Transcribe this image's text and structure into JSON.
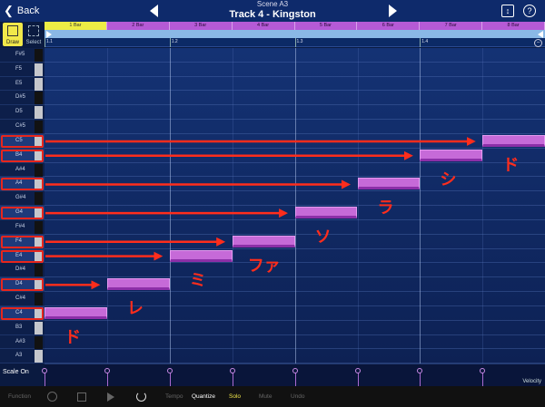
{
  "header": {
    "back_label": "Back",
    "scene_label": "Scene  A3",
    "track_title": "Track 4 - Kingston",
    "help_glyph": "?",
    "expand_glyph": "↕"
  },
  "tools": {
    "draw_label": "Draw",
    "select_label": "Select"
  },
  "bars": [
    "1 Bar",
    "2 Bar",
    "3 Bar",
    "4 Bar",
    "5 Bar",
    "6 Bar",
    "7 Bar",
    "8 Bar"
  ],
  "beats": [
    "1.1",
    "1.2",
    "1.3",
    "1.4"
  ],
  "keyboard": {
    "keys": [
      {
        "label": "F#5",
        "black": true
      },
      {
        "label": "F5",
        "black": false
      },
      {
        "label": "E5",
        "black": false
      },
      {
        "label": "D#5",
        "black": true
      },
      {
        "label": "D5",
        "black": false
      },
      {
        "label": "C#5",
        "black": true
      },
      {
        "label": "C5",
        "black": false
      },
      {
        "label": "B4",
        "black": false
      },
      {
        "label": "A#4",
        "black": true
      },
      {
        "label": "A4",
        "black": false
      },
      {
        "label": "G#4",
        "black": true
      },
      {
        "label": "G4",
        "black": false
      },
      {
        "label": "F#4",
        "black": true
      },
      {
        "label": "F4",
        "black": false
      },
      {
        "label": "E4",
        "black": false
      },
      {
        "label": "D#4",
        "black": true
      },
      {
        "label": "D4",
        "black": false
      },
      {
        "label": "C#4",
        "black": true
      },
      {
        "label": "C4",
        "black": false
      },
      {
        "label": "B3",
        "black": false
      },
      {
        "label": "A#3",
        "black": true
      },
      {
        "label": "A3",
        "black": false
      }
    ]
  },
  "notes": [
    {
      "pitch": "C4",
      "step": 0
    },
    {
      "pitch": "D4",
      "step": 1
    },
    {
      "pitch": "E4",
      "step": 2
    },
    {
      "pitch": "F4",
      "step": 3
    },
    {
      "pitch": "G4",
      "step": 4
    },
    {
      "pitch": "A4",
      "step": 5
    },
    {
      "pitch": "B4",
      "step": 6
    },
    {
      "pitch": "C5",
      "step": 7
    }
  ],
  "annotations": {
    "color": "#ff2d1c",
    "labels": [
      "ド",
      "レ",
      "ミ",
      "ファ",
      "ソ",
      "ラ",
      "シ",
      "ド"
    ]
  },
  "scale_label": "Scale On",
  "velocity_label": "Velocity",
  "footer": {
    "function": "Function",
    "tempo": "Tempo",
    "quantize": "Quantize",
    "solo": "Solo",
    "mute": "Mute",
    "undo": "Undo"
  },
  "colors": {
    "note": "#c66ad8",
    "playhead_bar": "#eded45",
    "bar_ruler": "#b55ad6",
    "highlight": "#e8261c"
  }
}
